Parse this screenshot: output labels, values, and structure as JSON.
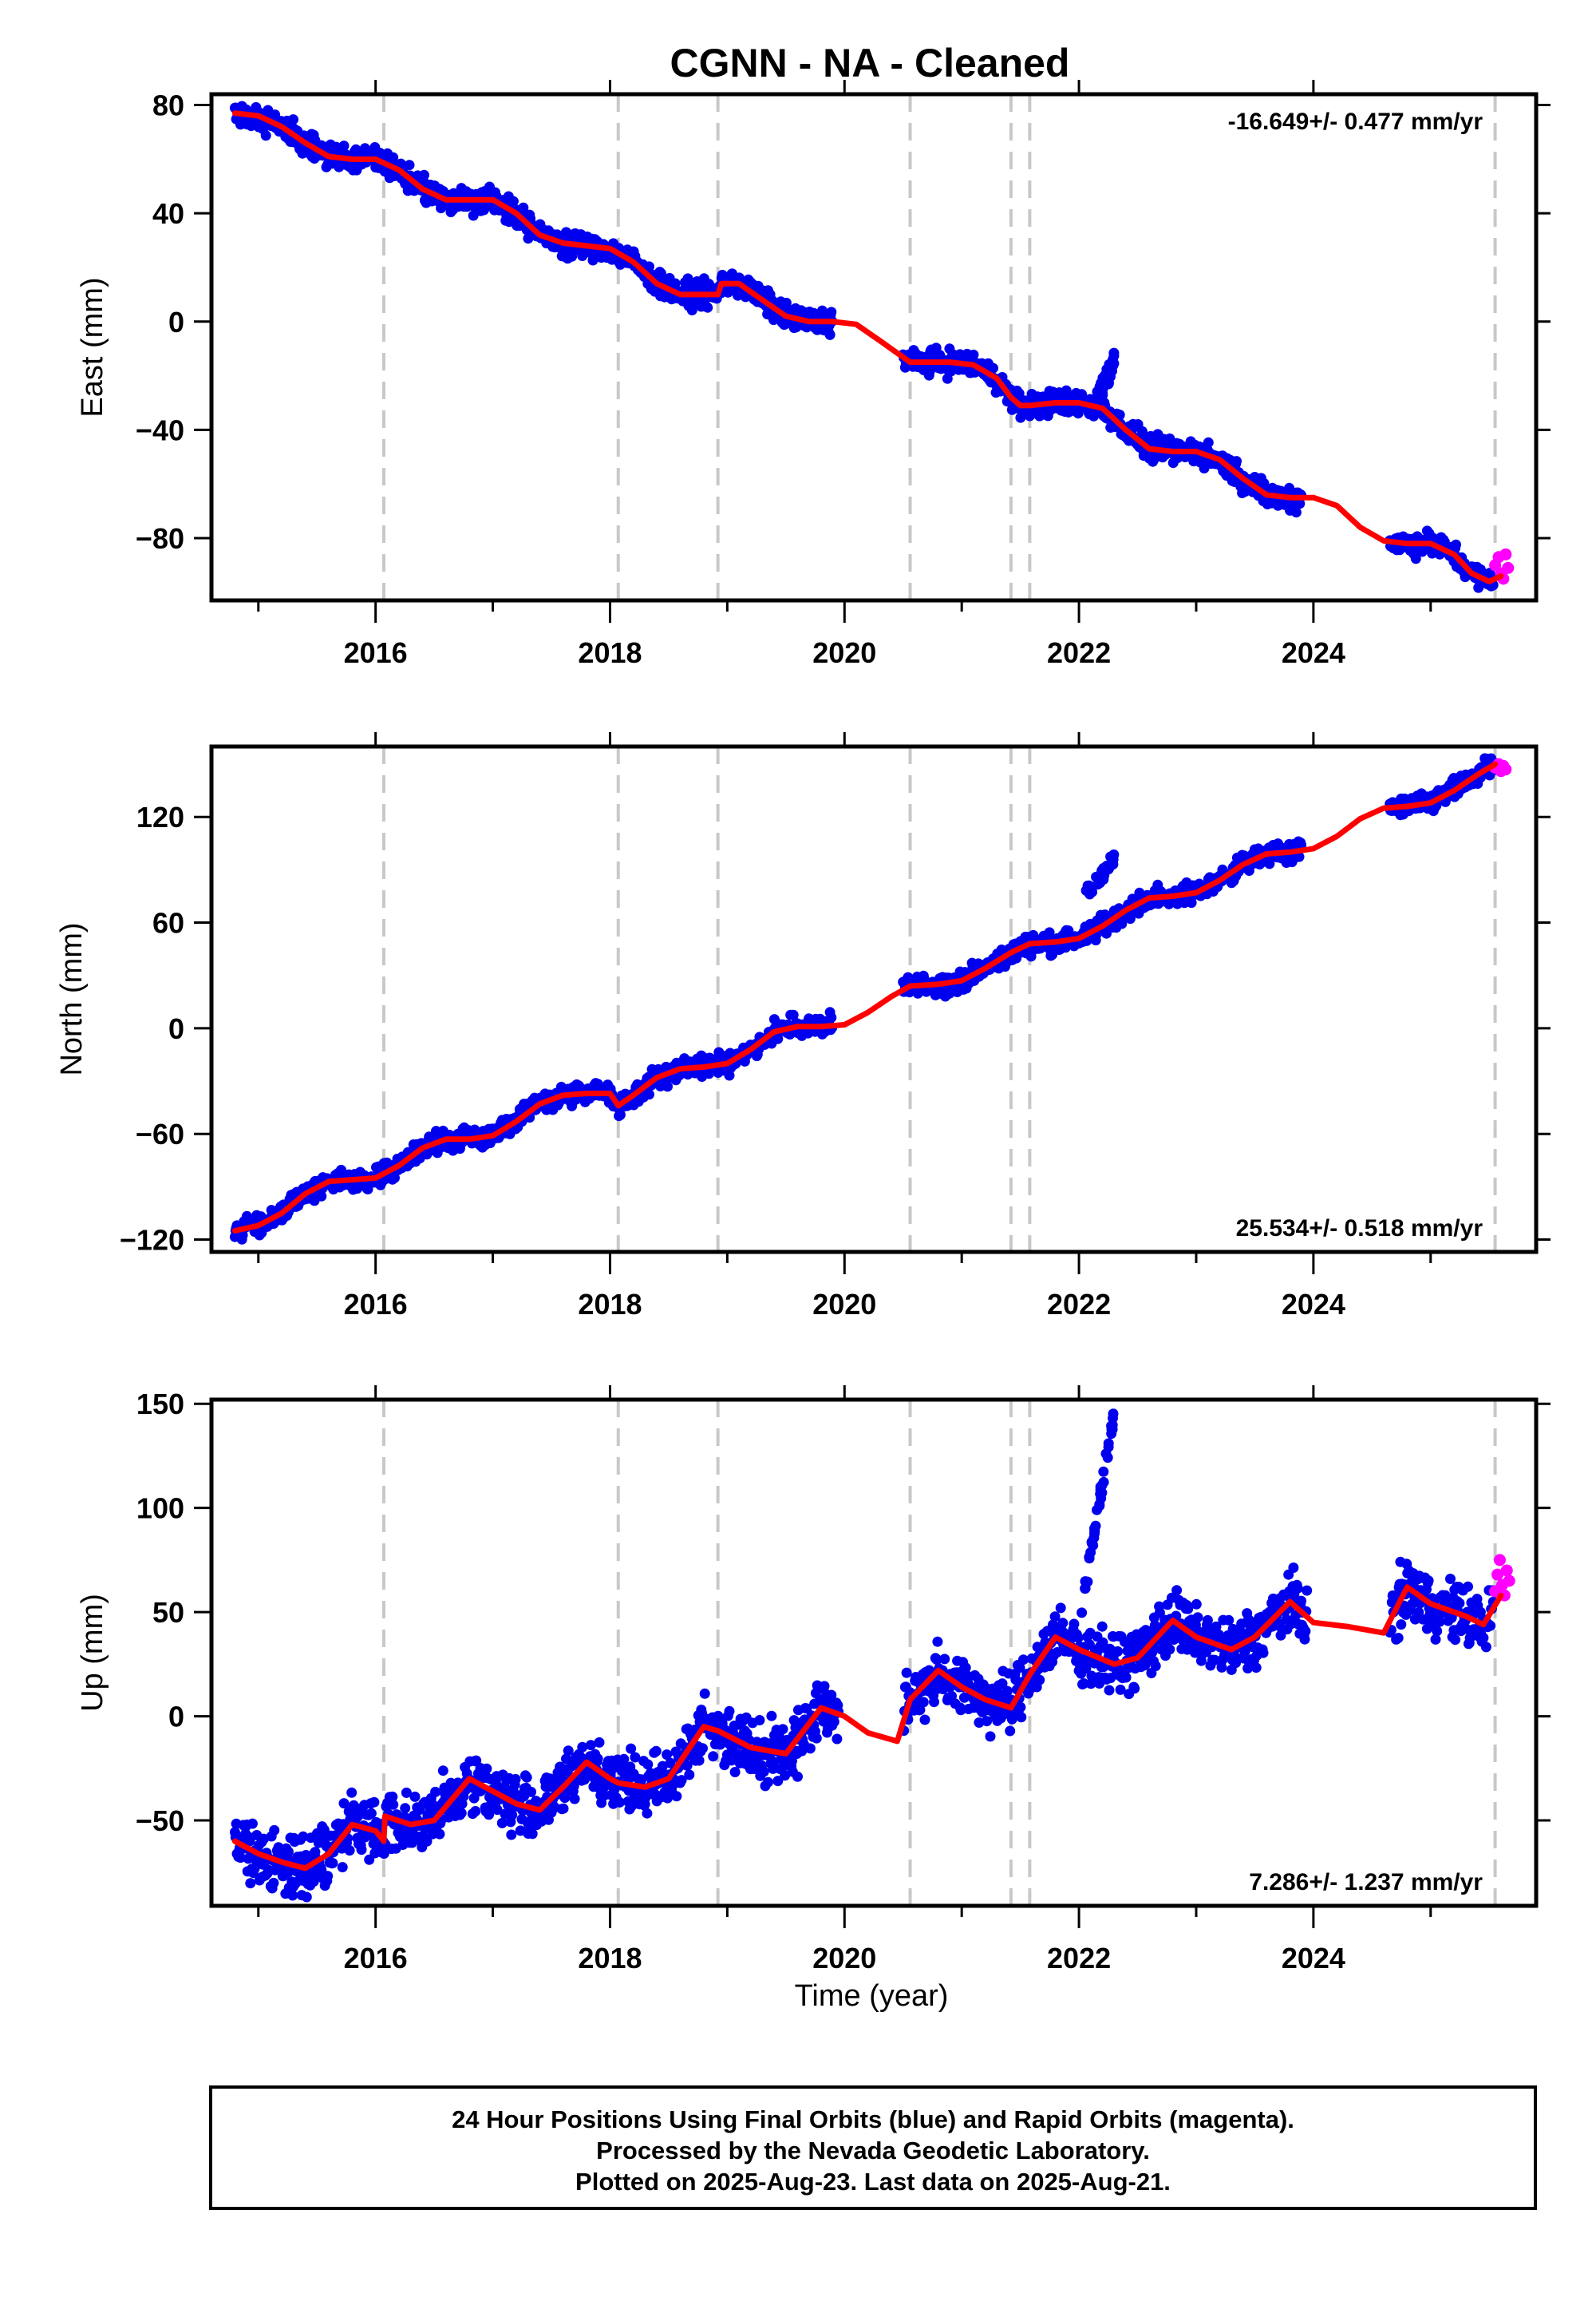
{
  "page": {
    "title": "CGNN  - NA - Cleaned",
    "xlabel": "Time (year)"
  },
  "footer": {
    "line1": "24 Hour Positions Using Final Orbits (blue) and Rapid Orbits (magenta).",
    "line2": "Processed by the Nevada Geodetic Laboratory.",
    "line3": "Plotted on 2025-Aug-23. Last data on 2025-Aug-21."
  },
  "colors": {
    "final_orbits": "#0000ee",
    "rapid_orbits": "#ff00ff",
    "model": "#ff0000",
    "event_lines": "#c8c8c8"
  },
  "chart_data": [
    {
      "type": "scatter",
      "ylabel": "East (mm)",
      "rate_label": "-16.649+/- 0.477 mm/yr",
      "rate_position": "top-right",
      "xlim": [
        2014.6,
        2025.9
      ],
      "ylim": [
        -103,
        84
      ],
      "xticks": [
        2016,
        2018,
        2020,
        2022,
        2024
      ],
      "yticks": [
        80,
        40,
        0,
        -40,
        -80
      ],
      "ytick_labels": [
        "80",
        "40",
        "0",
        "−40",
        "−80"
      ],
      "event_lines": [
        2016.07,
        2018.07,
        2018.92,
        2020.56,
        2021.42,
        2021.58,
        2025.55
      ],
      "model": [
        [
          2014.8,
          77
        ],
        [
          2015.0,
          76
        ],
        [
          2015.2,
          72
        ],
        [
          2015.4,
          66
        ],
        [
          2015.6,
          61
        ],
        [
          2015.8,
          60
        ],
        [
          2016.0,
          60
        ],
        [
          2016.2,
          56
        ],
        [
          2016.4,
          49
        ],
        [
          2016.6,
          45
        ],
        [
          2016.8,
          45
        ],
        [
          2017.0,
          45
        ],
        [
          2017.2,
          40
        ],
        [
          2017.4,
          32
        ],
        [
          2017.6,
          29
        ],
        [
          2017.8,
          28
        ],
        [
          2018.0,
          27
        ],
        [
          2018.2,
          22
        ],
        [
          2018.4,
          14
        ],
        [
          2018.6,
          10
        ],
        [
          2018.8,
          10
        ],
        [
          2018.92,
          10
        ],
        [
          2018.95,
          14
        ],
        [
          2019.1,
          14
        ],
        [
          2019.3,
          8
        ],
        [
          2019.5,
          2
        ],
        [
          2019.7,
          0
        ],
        [
          2019.9,
          0
        ],
        [
          2020.1,
          -1
        ],
        [
          2020.3,
          -7
        ],
        [
          2020.56,
          -15
        ],
        [
          2020.7,
          -15
        ],
        [
          2020.9,
          -15
        ],
        [
          2021.1,
          -16
        ],
        [
          2021.3,
          -21
        ],
        [
          2021.42,
          -28
        ],
        [
          2021.5,
          -31
        ],
        [
          2021.58,
          -31
        ],
        [
          2021.8,
          -30
        ],
        [
          2022.0,
          -30
        ],
        [
          2022.2,
          -32
        ],
        [
          2022.4,
          -40
        ],
        [
          2022.6,
          -47
        ],
        [
          2022.8,
          -48
        ],
        [
          2023.0,
          -48
        ],
        [
          2023.2,
          -51
        ],
        [
          2023.4,
          -58
        ],
        [
          2023.6,
          -64
        ],
        [
          2023.8,
          -65
        ],
        [
          2024.0,
          -65
        ],
        [
          2024.2,
          -68
        ],
        [
          2024.4,
          -76
        ],
        [
          2024.6,
          -81
        ],
        [
          2024.8,
          -82
        ],
        [
          2025.0,
          -82
        ],
        [
          2025.2,
          -86
        ],
        [
          2025.35,
          -93
        ],
        [
          2025.5,
          -96
        ],
        [
          2025.6,
          -94
        ]
      ],
      "scatter_noise": 2.2,
      "gaps": [
        [
          2019.9,
          2020.5
        ],
        [
          2023.9,
          2024.65
        ]
      ],
      "outliers": [
        [
          2022.15,
          2022.3,
          -30,
          -14
        ]
      ],
      "rapid": [
        [
          2025.55,
          -90
        ],
        [
          2025.58,
          -87
        ],
        [
          2025.6,
          -93
        ],
        [
          2025.62,
          -95
        ],
        [
          2025.64,
          -86
        ],
        [
          2025.66,
          -91
        ]
      ]
    },
    {
      "type": "scatter",
      "ylabel": "North (mm)",
      "rate_label": "25.534+/- 0.518 mm/yr",
      "rate_position": "bottom-right",
      "xlim": [
        2014.6,
        2025.9
      ],
      "ylim": [
        -127,
        160
      ],
      "xticks": [
        2016,
        2018,
        2020,
        2022,
        2024
      ],
      "yticks": [
        120,
        60,
        0,
        -60,
        -120
      ],
      "ytick_labels": [
        "120",
        "60",
        "0",
        "−60",
        "−120"
      ],
      "event_lines": [
        2016.07,
        2018.07,
        2018.92,
        2020.56,
        2021.42,
        2021.58,
        2025.55
      ],
      "model": [
        [
          2014.8,
          -115
        ],
        [
          2015.0,
          -112
        ],
        [
          2015.2,
          -105
        ],
        [
          2015.4,
          -94
        ],
        [
          2015.6,
          -87
        ],
        [
          2015.8,
          -86
        ],
        [
          2016.0,
          -85
        ],
        [
          2016.2,
          -78
        ],
        [
          2016.4,
          -68
        ],
        [
          2016.6,
          -63
        ],
        [
          2016.8,
          -63
        ],
        [
          2017.0,
          -61
        ],
        [
          2017.2,
          -53
        ],
        [
          2017.4,
          -43
        ],
        [
          2017.6,
          -38
        ],
        [
          2017.8,
          -37
        ],
        [
          2018.0,
          -37
        ],
        [
          2018.07,
          -44
        ],
        [
          2018.2,
          -38
        ],
        [
          2018.4,
          -28
        ],
        [
          2018.6,
          -23
        ],
        [
          2018.8,
          -22
        ],
        [
          2019.0,
          -20
        ],
        [
          2019.2,
          -12
        ],
        [
          2019.4,
          -2
        ],
        [
          2019.6,
          1
        ],
        [
          2019.8,
          1
        ],
        [
          2020.0,
          2
        ],
        [
          2020.2,
          9
        ],
        [
          2020.4,
          18
        ],
        [
          2020.56,
          24
        ],
        [
          2020.8,
          25
        ],
        [
          2021.0,
          27
        ],
        [
          2021.2,
          34
        ],
        [
          2021.42,
          43
        ],
        [
          2021.58,
          48
        ],
        [
          2021.8,
          49
        ],
        [
          2022.0,
          51
        ],
        [
          2022.2,
          58
        ],
        [
          2022.4,
          67
        ],
        [
          2022.6,
          74
        ],
        [
          2022.8,
          75
        ],
        [
          2023.0,
          77
        ],
        [
          2023.2,
          84
        ],
        [
          2023.4,
          93
        ],
        [
          2023.6,
          99
        ],
        [
          2023.8,
          100
        ],
        [
          2024.0,
          102
        ],
        [
          2024.2,
          109
        ],
        [
          2024.4,
          119
        ],
        [
          2024.6,
          125
        ],
        [
          2024.8,
          126
        ],
        [
          2025.0,
          128
        ],
        [
          2025.2,
          135
        ],
        [
          2025.4,
          144
        ],
        [
          2025.55,
          150
        ]
      ],
      "scatter_noise": 2.8,
      "gaps": [
        [
          2019.9,
          2020.5
        ],
        [
          2023.9,
          2024.65
        ]
      ],
      "outliers": [
        [
          2022.05,
          2022.3,
          75,
          96
        ]
      ],
      "rapid": [
        [
          2025.55,
          148
        ],
        [
          2025.58,
          150
        ],
        [
          2025.6,
          146
        ],
        [
          2025.62,
          149
        ],
        [
          2025.64,
          147
        ]
      ]
    },
    {
      "type": "scatter",
      "ylabel": "Up (mm)",
      "rate_label": "7.286+/- 1.237 mm/yr",
      "rate_position": "bottom-right",
      "xlim": [
        2014.6,
        2025.9
      ],
      "ylim": [
        -91,
        152
      ],
      "xticks": [
        2016,
        2018,
        2020,
        2022,
        2024
      ],
      "yticks": [
        150,
        100,
        50,
        0,
        -50
      ],
      "ytick_labels": [
        "150",
        "100",
        "50",
        "0",
        "−50"
      ],
      "event_lines": [
        2016.07,
        2018.07,
        2018.92,
        2020.56,
        2021.42,
        2021.58,
        2025.55
      ],
      "model": [
        [
          2014.8,
          -60
        ],
        [
          2015.0,
          -66
        ],
        [
          2015.2,
          -70
        ],
        [
          2015.4,
          -73
        ],
        [
          2015.6,
          -66
        ],
        [
          2015.8,
          -52
        ],
        [
          2016.0,
          -55
        ],
        [
          2016.07,
          -60
        ],
        [
          2016.08,
          -48
        ],
        [
          2016.3,
          -52
        ],
        [
          2016.5,
          -50
        ],
        [
          2016.8,
          -30
        ],
        [
          2017.0,
          -36
        ],
        [
          2017.2,
          -42
        ],
        [
          2017.4,
          -45
        ],
        [
          2017.6,
          -34
        ],
        [
          2017.8,
          -22
        ],
        [
          2018.0,
          -30
        ],
        [
          2018.07,
          -32
        ],
        [
          2018.3,
          -34
        ],
        [
          2018.5,
          -30
        ],
        [
          2018.8,
          -5
        ],
        [
          2018.92,
          -7
        ],
        [
          2019.2,
          -15
        ],
        [
          2019.5,
          -18
        ],
        [
          2019.8,
          4
        ],
        [
          2020.0,
          0
        ],
        [
          2020.2,
          -8
        ],
        [
          2020.45,
          -12
        ],
        [
          2020.56,
          8
        ],
        [
          2020.8,
          22
        ],
        [
          2021.0,
          14
        ],
        [
          2021.2,
          8
        ],
        [
          2021.42,
          4
        ],
        [
          2021.58,
          20
        ],
        [
          2021.8,
          38
        ],
        [
          2022.0,
          32
        ],
        [
          2022.3,
          25
        ],
        [
          2022.5,
          28
        ],
        [
          2022.8,
          46
        ],
        [
          2023.0,
          38
        ],
        [
          2023.3,
          32
        ],
        [
          2023.5,
          38
        ],
        [
          2023.8,
          55
        ],
        [
          2024.0,
          45
        ],
        [
          2024.3,
          43
        ],
        [
          2024.6,
          40
        ],
        [
          2024.8,
          62
        ],
        [
          2025.0,
          54
        ],
        [
          2025.3,
          48
        ],
        [
          2025.45,
          44
        ],
        [
          2025.6,
          58
        ]
      ],
      "scatter_noise": 7,
      "gaps": [
        [
          2019.95,
          2020.5
        ],
        [
          2023.95,
          2024.65
        ]
      ],
      "outliers": [
        [
          2022.05,
          2022.3,
          60,
          146
        ]
      ],
      "rapid": [
        [
          2025.55,
          60
        ],
        [
          2025.57,
          68
        ],
        [
          2025.59,
          75
        ],
        [
          2025.61,
          63
        ],
        [
          2025.63,
          58
        ],
        [
          2025.65,
          70
        ],
        [
          2025.67,
          65
        ]
      ]
    }
  ]
}
